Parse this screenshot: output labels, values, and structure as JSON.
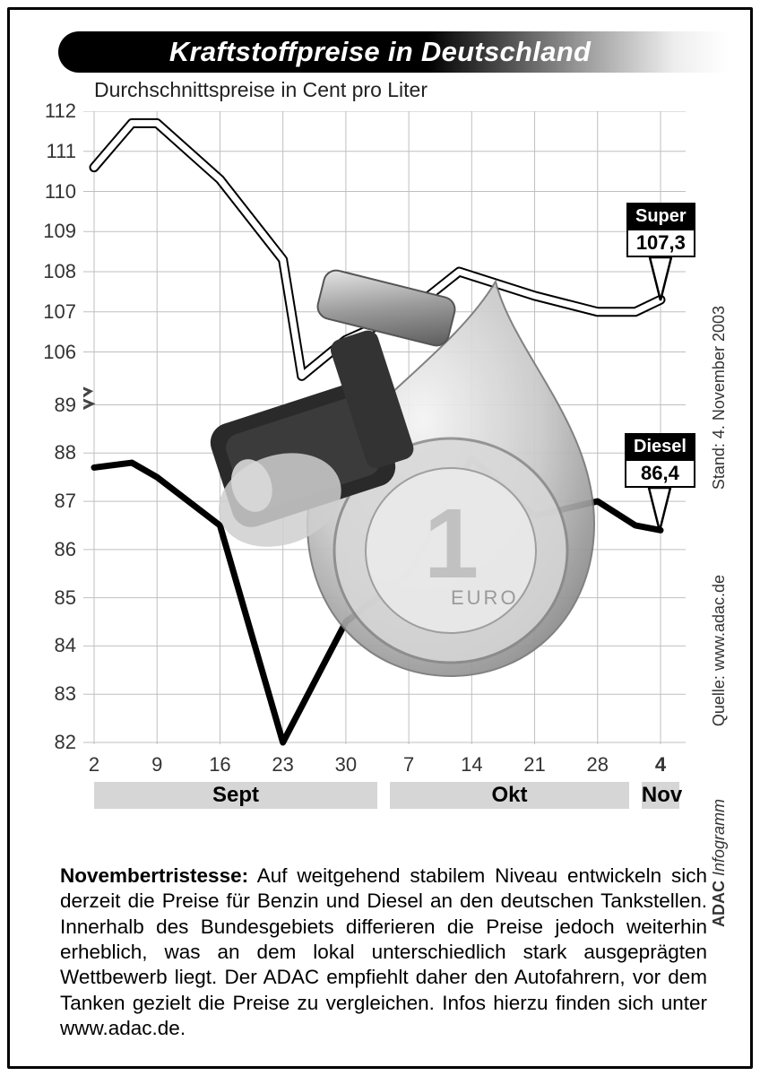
{
  "title": "Kraftstoffpreise in Deutschland",
  "subtitle": "Durchschnittspreise in Cent pro Liter",
  "credits": {
    "date": "Stand: 4. November 2003",
    "source": "Quelle: www.adac.de",
    "brand_bold": "ADAC",
    "brand_rest": " Infogramm"
  },
  "chart": {
    "type": "line",
    "y_upper": {
      "min": 105,
      "max": 112,
      "ticks": [
        112,
        111,
        110,
        109,
        108,
        107,
        106
      ]
    },
    "y_lower": {
      "min": 82,
      "max": 89,
      "ticks": [
        89,
        88,
        87,
        86,
        85,
        84,
        83,
        82
      ]
    },
    "x_dates": [
      "2",
      "9",
      "16",
      "23",
      "30",
      "7",
      "14",
      "21",
      "28",
      "4"
    ],
    "months": [
      {
        "label": "Sept",
        "start_idx": 0,
        "end_idx": 4.5
      },
      {
        "label": "Okt",
        "start_idx": 4.7,
        "end_idx": 8.5
      },
      {
        "label": "Nov",
        "start_idx": 8.7,
        "end_idx": 9.3
      }
    ],
    "series": {
      "super": {
        "label": "Super",
        "final_value": "107,3",
        "scale": "upper",
        "stroke": "#ffffff",
        "outline": "#000000",
        "stroke_width": 7,
        "outline_width": 11,
        "points": [
          [
            0,
            110.6
          ],
          [
            0.6,
            111.7
          ],
          [
            1,
            111.7
          ],
          [
            2,
            110.3
          ],
          [
            3,
            108.3
          ],
          [
            3.3,
            105.4
          ],
          [
            4,
            106.3
          ],
          [
            5,
            107.0
          ],
          [
            5.8,
            108.0
          ],
          [
            6,
            107.9
          ],
          [
            7,
            107.4
          ],
          [
            8,
            107.0
          ],
          [
            8.6,
            107.0
          ],
          [
            9,
            107.3
          ]
        ]
      },
      "diesel": {
        "label": "Diesel",
        "final_value": "86,4",
        "scale": "lower",
        "stroke": "#000000",
        "stroke_width": 7,
        "points": [
          [
            0,
            87.7
          ],
          [
            0.6,
            87.8
          ],
          [
            1,
            87.5
          ],
          [
            2,
            86.5
          ],
          [
            3,
            82.0
          ],
          [
            4,
            84.5
          ],
          [
            5,
            85.5
          ],
          [
            6,
            87.9
          ],
          [
            7,
            86.7
          ],
          [
            8,
            87.0
          ],
          [
            8.6,
            86.5
          ],
          [
            9,
            86.4
          ]
        ]
      }
    },
    "grid_color": "#bfbfbf",
    "axis_color": "#aaaaaa",
    "break_mark": true,
    "background": "#ffffff",
    "label_fontsize": 22
  },
  "callouts": {
    "super": {
      "name": "Super",
      "value": "107,3"
    },
    "diesel": {
      "name": "Diesel",
      "value": "86,4"
    }
  },
  "body": {
    "lead": "Novembertristesse:",
    "text": " Auf weitgehend stabilem Niveau entwickeln sich derzeit die Preise für Benzin und Diesel an den deutschen Tankstellen. Innerhalb des Bundesgebiets differieren die Preise jedoch weiterhin erheblich, was an dem lokal unterschiedlich stark ausgeprägten Wettbewerb liegt. Der ADAC empfiehlt daher den Autofahrern, vor dem Tanken gezielt die Preise zu vergleichen. Infos hierzu finden sich unter www.adac.de."
  }
}
